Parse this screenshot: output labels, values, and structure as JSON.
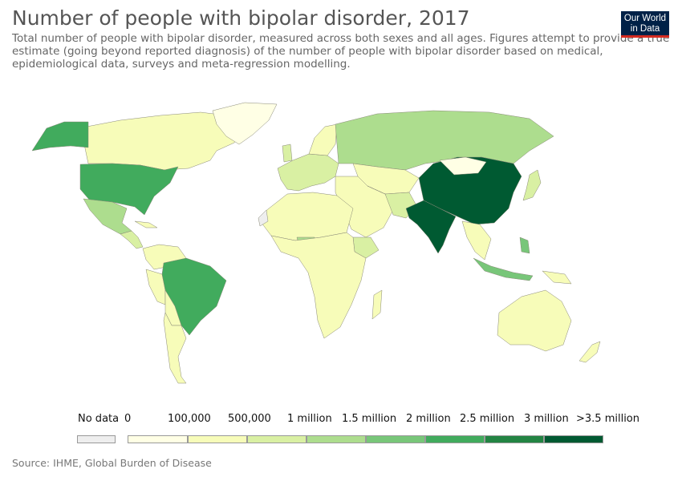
{
  "title": "Number of people with bipolar disorder, 2017",
  "subtitle": "Total number of people with bipolar disorder, measured across both sexes and all ages. Figures attempt to provide a true estimate (going beyond reported diagnosis) of the number of people with bipolar disorder based on medical, epidemiological data, surveys and meta-regression modelling.",
  "logo": {
    "line1": "Our World",
    "line2": "in Data"
  },
  "legend": {
    "no_data_label": "No data",
    "no_data_color": "#eeeeee",
    "tick_labels": [
      "0",
      "100,000",
      "500,000",
      "1 million",
      "1.5 million",
      "2 million",
      "2.5 million",
      "3 million",
      ">3.5 million"
    ],
    "bins": [
      {
        "color": "#ffffe5"
      },
      {
        "color": "#f7fcb9"
      },
      {
        "color": "#d9f0a3"
      },
      {
        "color": "#addd8e"
      },
      {
        "color": "#78c679"
      },
      {
        "color": "#41ab5d"
      },
      {
        "color": "#238443"
      },
      {
        "color": "#005a32"
      }
    ]
  },
  "source": "Source: IHME, Global Burden of Disease"
}
